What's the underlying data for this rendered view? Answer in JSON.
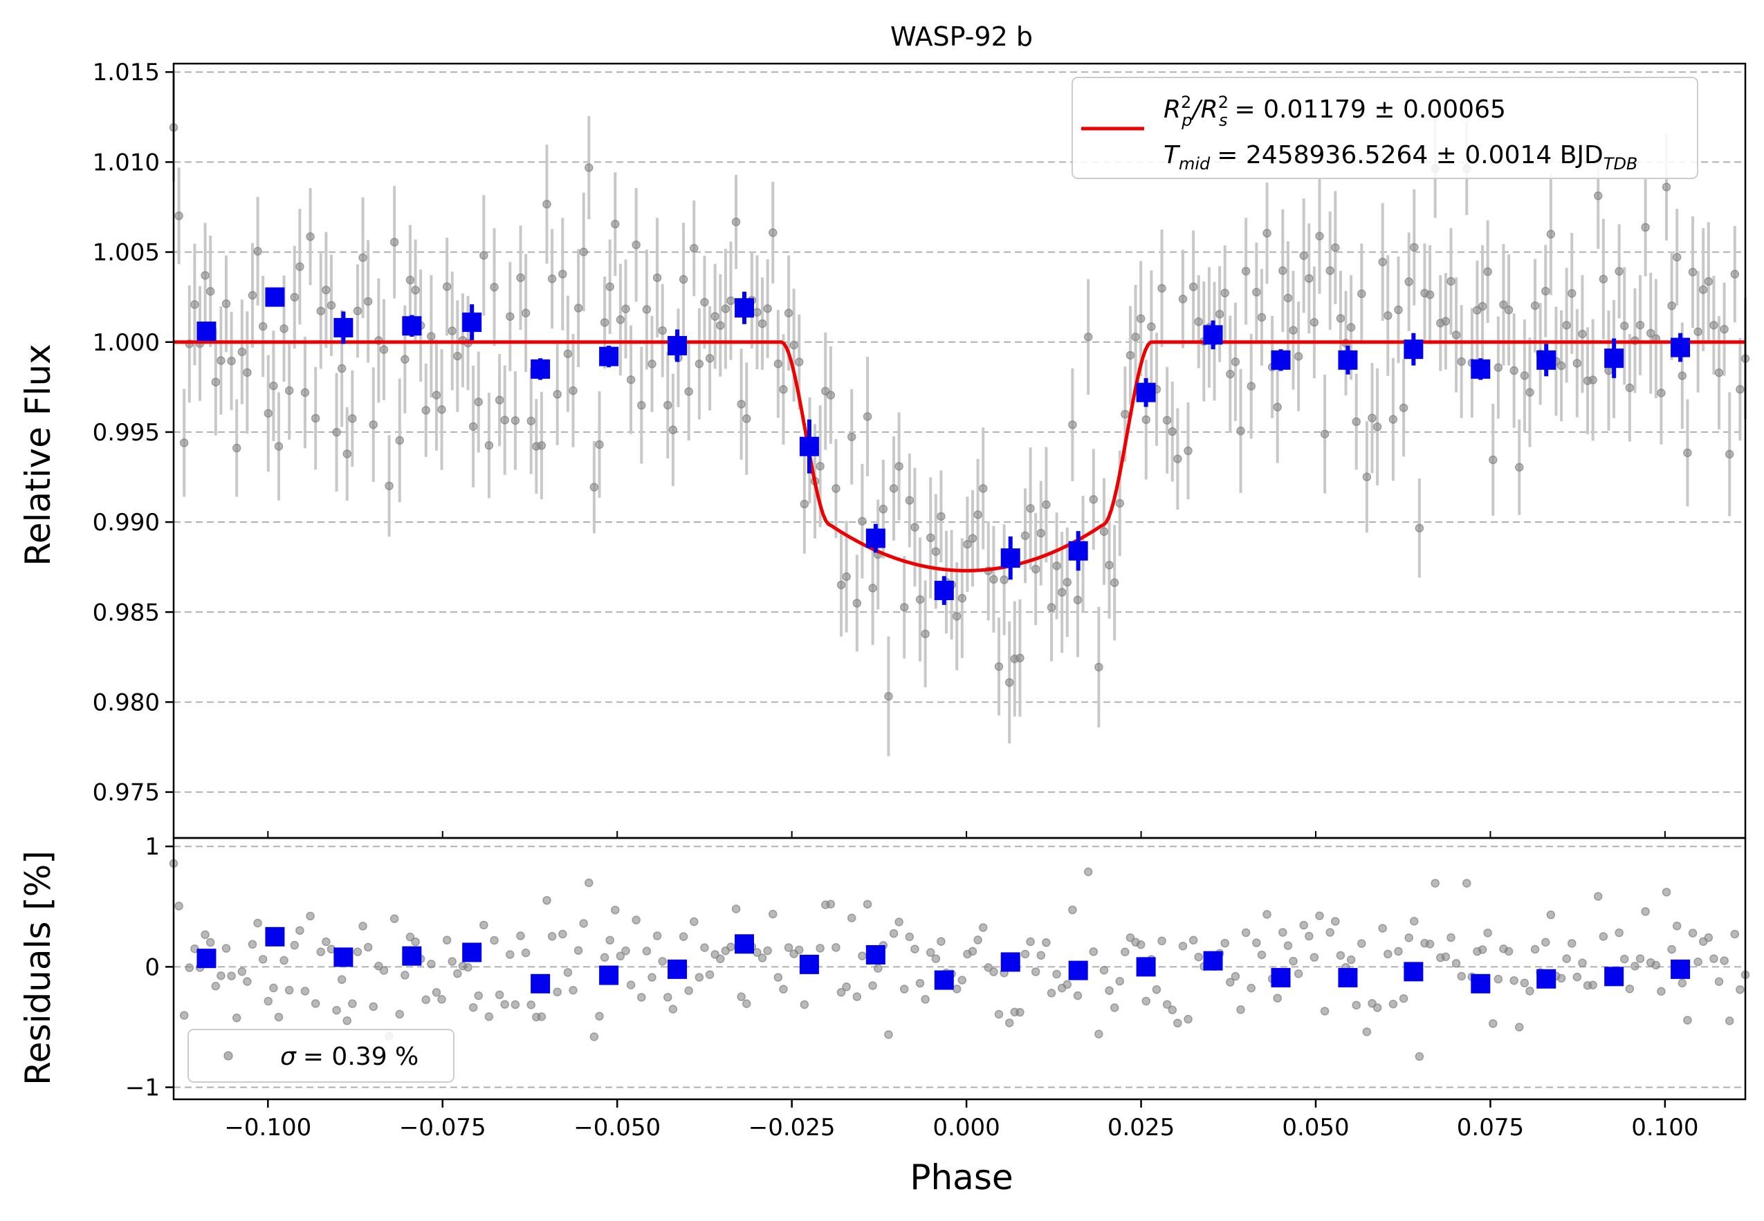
{
  "chart_data": {
    "type": "scatter",
    "title": "WASP-92 b",
    "xlabel": "Phase",
    "xlim": [
      -0.1135,
      0.1115
    ],
    "x_ticks": [
      -0.1,
      -0.075,
      -0.05,
      -0.025,
      0.0,
      0.025,
      0.05,
      0.075,
      0.1
    ],
    "x_tick_labels": [
      "−0.100",
      "−0.075",
      "−0.050",
      "−0.025",
      "0.000",
      "0.025",
      "0.050",
      "0.075",
      "0.100"
    ],
    "top_panel": {
      "ylabel": "Relative Flux",
      "ylim": [
        0.97245,
        1.01547
      ],
      "y_ticks": [
        0.975,
        0.98,
        0.985,
        0.99,
        0.995,
        1.0,
        1.005,
        1.01,
        1.015
      ],
      "y_tick_labels": [
        "0.975",
        "0.980",
        "0.985",
        "0.990",
        "0.995",
        "1.000",
        "1.005",
        "1.010",
        "1.015"
      ],
      "grid": "horizontal dashed",
      "model": {
        "name": "transit model",
        "color": "#ee0000",
        "baseline": 1.0,
        "depth_min": 0.9873,
        "ingress_start": -0.0265,
        "full_start": -0.0195,
        "full_end": 0.0195,
        "egress_end": 0.0265
      },
      "legend": {
        "position": "top-right",
        "entry1_prefix": "R",
        "entry1_math_text": "R_p^2/R_s^2",
        "entry1_value": "= 0.01179 ± 0.00065",
        "entry2_prefix": "T",
        "entry2_math_text": "T_mid",
        "entry2_sub": "mid",
        "entry2_value": "= 2458936.5264 ± 0.0014 BJD",
        "entry2_value_sub": "TDB",
        "p_sub": "p",
        "s_sub": "s",
        "sup2": "2",
        "slash": "/R"
      },
      "binned_points": [
        {
          "x": -0.1088,
          "y": 1.0006,
          "err": 0.0005
        },
        {
          "x": -0.099,
          "y": 1.0025,
          "err": 0.0005
        },
        {
          "x": -0.0892,
          "y": 1.0008,
          "err": 0.0009
        },
        {
          "x": -0.0794,
          "y": 1.0009,
          "err": 0.0006
        },
        {
          "x": -0.0708,
          "y": 1.0011,
          "err": 0.001
        },
        {
          "x": -0.061,
          "y": 0.9985,
          "err": 0.0006
        },
        {
          "x": -0.0512,
          "y": 0.9992,
          "err": 0.0006
        },
        {
          "x": -0.0414,
          "y": 0.9998,
          "err": 0.0009
        },
        {
          "x": -0.0318,
          "y": 1.0019,
          "err": 0.0009
        },
        {
          "x": -0.0225,
          "y": 0.9942,
          "err": 0.0015
        },
        {
          "x": -0.013,
          "y": 0.9891,
          "err": 0.0008
        },
        {
          "x": -0.0032,
          "y": 0.9862,
          "err": 0.0008
        },
        {
          "x": 0.0063,
          "y": 0.988,
          "err": 0.0012
        },
        {
          "x": 0.016,
          "y": 0.9884,
          "err": 0.0011
        },
        {
          "x": 0.0257,
          "y": 0.9972,
          "err": 0.0008
        },
        {
          "x": 0.0353,
          "y": 1.0004,
          "err": 0.0008
        },
        {
          "x": 0.045,
          "y": 0.999,
          "err": 0.0006
        },
        {
          "x": 0.0546,
          "y": 0.999,
          "err": 0.0008
        },
        {
          "x": 0.064,
          "y": 0.9996,
          "err": 0.0009
        },
        {
          "x": 0.0736,
          "y": 0.9985,
          "err": 0.0006
        },
        {
          "x": 0.083,
          "y": 0.999,
          "err": 0.0009
        },
        {
          "x": 0.0927,
          "y": 0.9991,
          "err": 0.0011
        },
        {
          "x": 0.1022,
          "y": 0.9997,
          "err": 0.0008
        }
      ]
    },
    "bottom_panel": {
      "ylabel": "Residuals [%]",
      "ylim": [
        -1.1,
        1.07
      ],
      "y_ticks": [
        -1,
        0,
        1
      ],
      "y_tick_labels": [
        "−1",
        "0",
        "1"
      ],
      "grid": "horizontal dashed",
      "legend": {
        "position": "bottom-left",
        "symbol": "σ",
        "text": "= 0.39 %"
      },
      "binned_residuals": [
        {
          "x": -0.1088,
          "y": 0.07
        },
        {
          "x": -0.099,
          "y": 0.25
        },
        {
          "x": -0.0892,
          "y": 0.08
        },
        {
          "x": -0.0794,
          "y": 0.09
        },
        {
          "x": -0.0708,
          "y": 0.12
        },
        {
          "x": -0.061,
          "y": -0.14
        },
        {
          "x": -0.0512,
          "y": -0.07
        },
        {
          "x": -0.0414,
          "y": -0.02
        },
        {
          "x": -0.0318,
          "y": 0.19
        },
        {
          "x": -0.0225,
          "y": 0.02
        },
        {
          "x": -0.013,
          "y": 0.1
        },
        {
          "x": -0.0032,
          "y": -0.11
        },
        {
          "x": 0.0063,
          "y": 0.04
        },
        {
          "x": 0.016,
          "y": -0.03
        },
        {
          "x": 0.0257,
          "y": 0.0
        },
        {
          "x": 0.0353,
          "y": 0.05
        },
        {
          "x": 0.045,
          "y": -0.09
        },
        {
          "x": 0.0546,
          "y": -0.09
        },
        {
          "x": 0.064,
          "y": -0.04
        },
        {
          "x": 0.0736,
          "y": -0.14
        },
        {
          "x": 0.083,
          "y": -0.1
        },
        {
          "x": 0.0927,
          "y": -0.08
        },
        {
          "x": 0.1022,
          "y": -0.02
        }
      ]
    },
    "raw_data": {
      "n_points": 300,
      "x_start": -0.1135,
      "x_end": 0.1115,
      "flux_scatter": 0.0039,
      "errorbar_half_height": 0.003
    },
    "colors": {
      "raw_points": "#808080",
      "raw_errorbars": "#c8c8c8",
      "binned": "#0000ee",
      "model": "#ee0000",
      "grid": "#b0b0b0",
      "axes": "#000000"
    }
  }
}
